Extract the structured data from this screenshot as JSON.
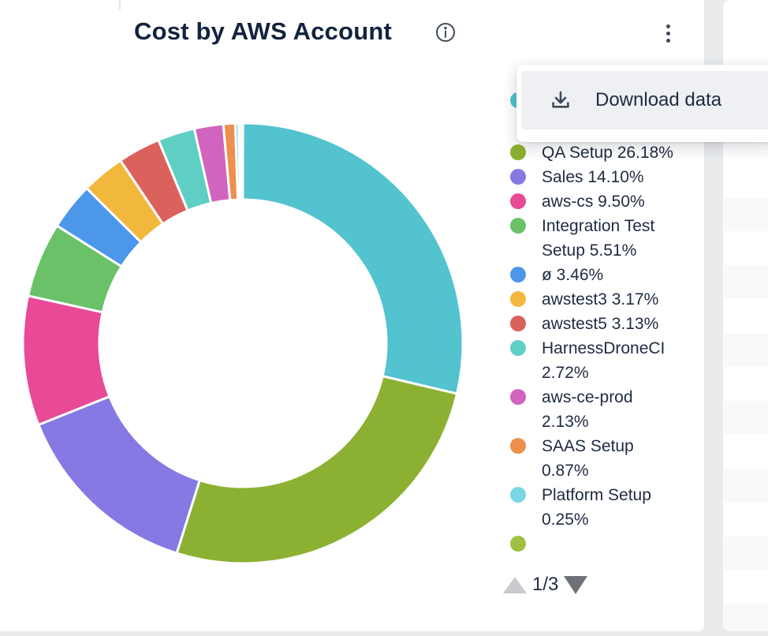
{
  "header": {
    "title": "Cost by AWS Account",
    "info_icon": "info-circle-icon",
    "more_icon": "kebab-menu-icon"
  },
  "menu": {
    "items": [
      {
        "label": "Download data",
        "icon": "download-icon",
        "hovered": true
      }
    ]
  },
  "chart_data": {
    "type": "pie",
    "donut": true,
    "title": "Cost by AWS Account",
    "unit": "%",
    "legend_position": "right",
    "slices": [
      {
        "name": "",
        "value": 28.68,
        "color": "#52c3cf",
        "occluded": true
      },
      {
        "name": "QA Setup",
        "value": 26.18,
        "color": "#8cb031"
      },
      {
        "name": "Sales",
        "value": 14.1,
        "color": "#8579e3"
      },
      {
        "name": "aws-cs",
        "value": 9.5,
        "color": "#e84a97"
      },
      {
        "name": "Integration Test Setup",
        "value": 5.51,
        "color": "#6ac168"
      },
      {
        "name": "ø",
        "value": 3.46,
        "color": "#4d97ea"
      },
      {
        "name": "awstest3",
        "value": 3.17,
        "color": "#f2b83d"
      },
      {
        "name": "awstest5",
        "value": 3.13,
        "color": "#db615d"
      },
      {
        "name": "HarnessDroneCI",
        "value": 2.72,
        "color": "#5fcfc3"
      },
      {
        "name": "aws-ce-prod",
        "value": 2.13,
        "color": "#d164be"
      },
      {
        "name": "SAAS Setup",
        "value": 0.87,
        "color": "#ee8f4e"
      },
      {
        "name": "Platform Setup",
        "value": 0.25,
        "color": "#7ad7e6"
      },
      {
        "name": "",
        "value": 0.2,
        "color": "#b5cc45",
        "occluded": true
      },
      {
        "name": "",
        "value": 0.1,
        "color": "#9fc040",
        "occluded": true
      }
    ]
  },
  "legend": {
    "items": [
      {
        "label": "",
        "pct": "",
        "color": "#52c3cf",
        "occluded": true
      },
      {
        "label": "QA Setup",
        "pct": "26.18%",
        "color": "#8cb031"
      },
      {
        "label": "Sales",
        "pct": "14.10%",
        "color": "#8579e3"
      },
      {
        "label": "aws-cs",
        "pct": "9.50%",
        "color": "#e84a97"
      },
      {
        "label": "Integration Test",
        "pct": "Setup 5.51%",
        "color": "#6ac168"
      },
      {
        "label": "ø",
        "pct": "3.46%",
        "color": "#4d97ea"
      },
      {
        "label": "awstest3",
        "pct": "3.17%",
        "color": "#f2b83d"
      },
      {
        "label": "awstest5",
        "pct": "3.13%",
        "color": "#db615d"
      },
      {
        "label": "HarnessDroneCI",
        "pct": "2.72%",
        "color": "#5fcfc3"
      },
      {
        "label": "aws-ce-prod",
        "pct": "2.13%",
        "color": "#d164be"
      },
      {
        "label": "SAAS Setup",
        "pct": "0.87%",
        "color": "#ee8f4e"
      },
      {
        "label": "Platform Setup",
        "pct": "0.25%",
        "color": "#7ad7e6"
      },
      {
        "label": "",
        "pct": "",
        "color": "#9fc040",
        "clipped": true
      }
    ],
    "pagination": {
      "label": "1/3",
      "current": 1,
      "total": 3
    }
  },
  "colors": {
    "page_background": "#e9ebed",
    "card_background": "#ffffff",
    "title_text": "#13233e",
    "body_text": "#1e2b40",
    "icon": "#3e4a59",
    "menu_hover_row": "#eef0f3",
    "stripe_row": "#f7f9fa",
    "pager_up_disabled": "#c8cacd",
    "pager_down_enabled": "#6f7377"
  }
}
